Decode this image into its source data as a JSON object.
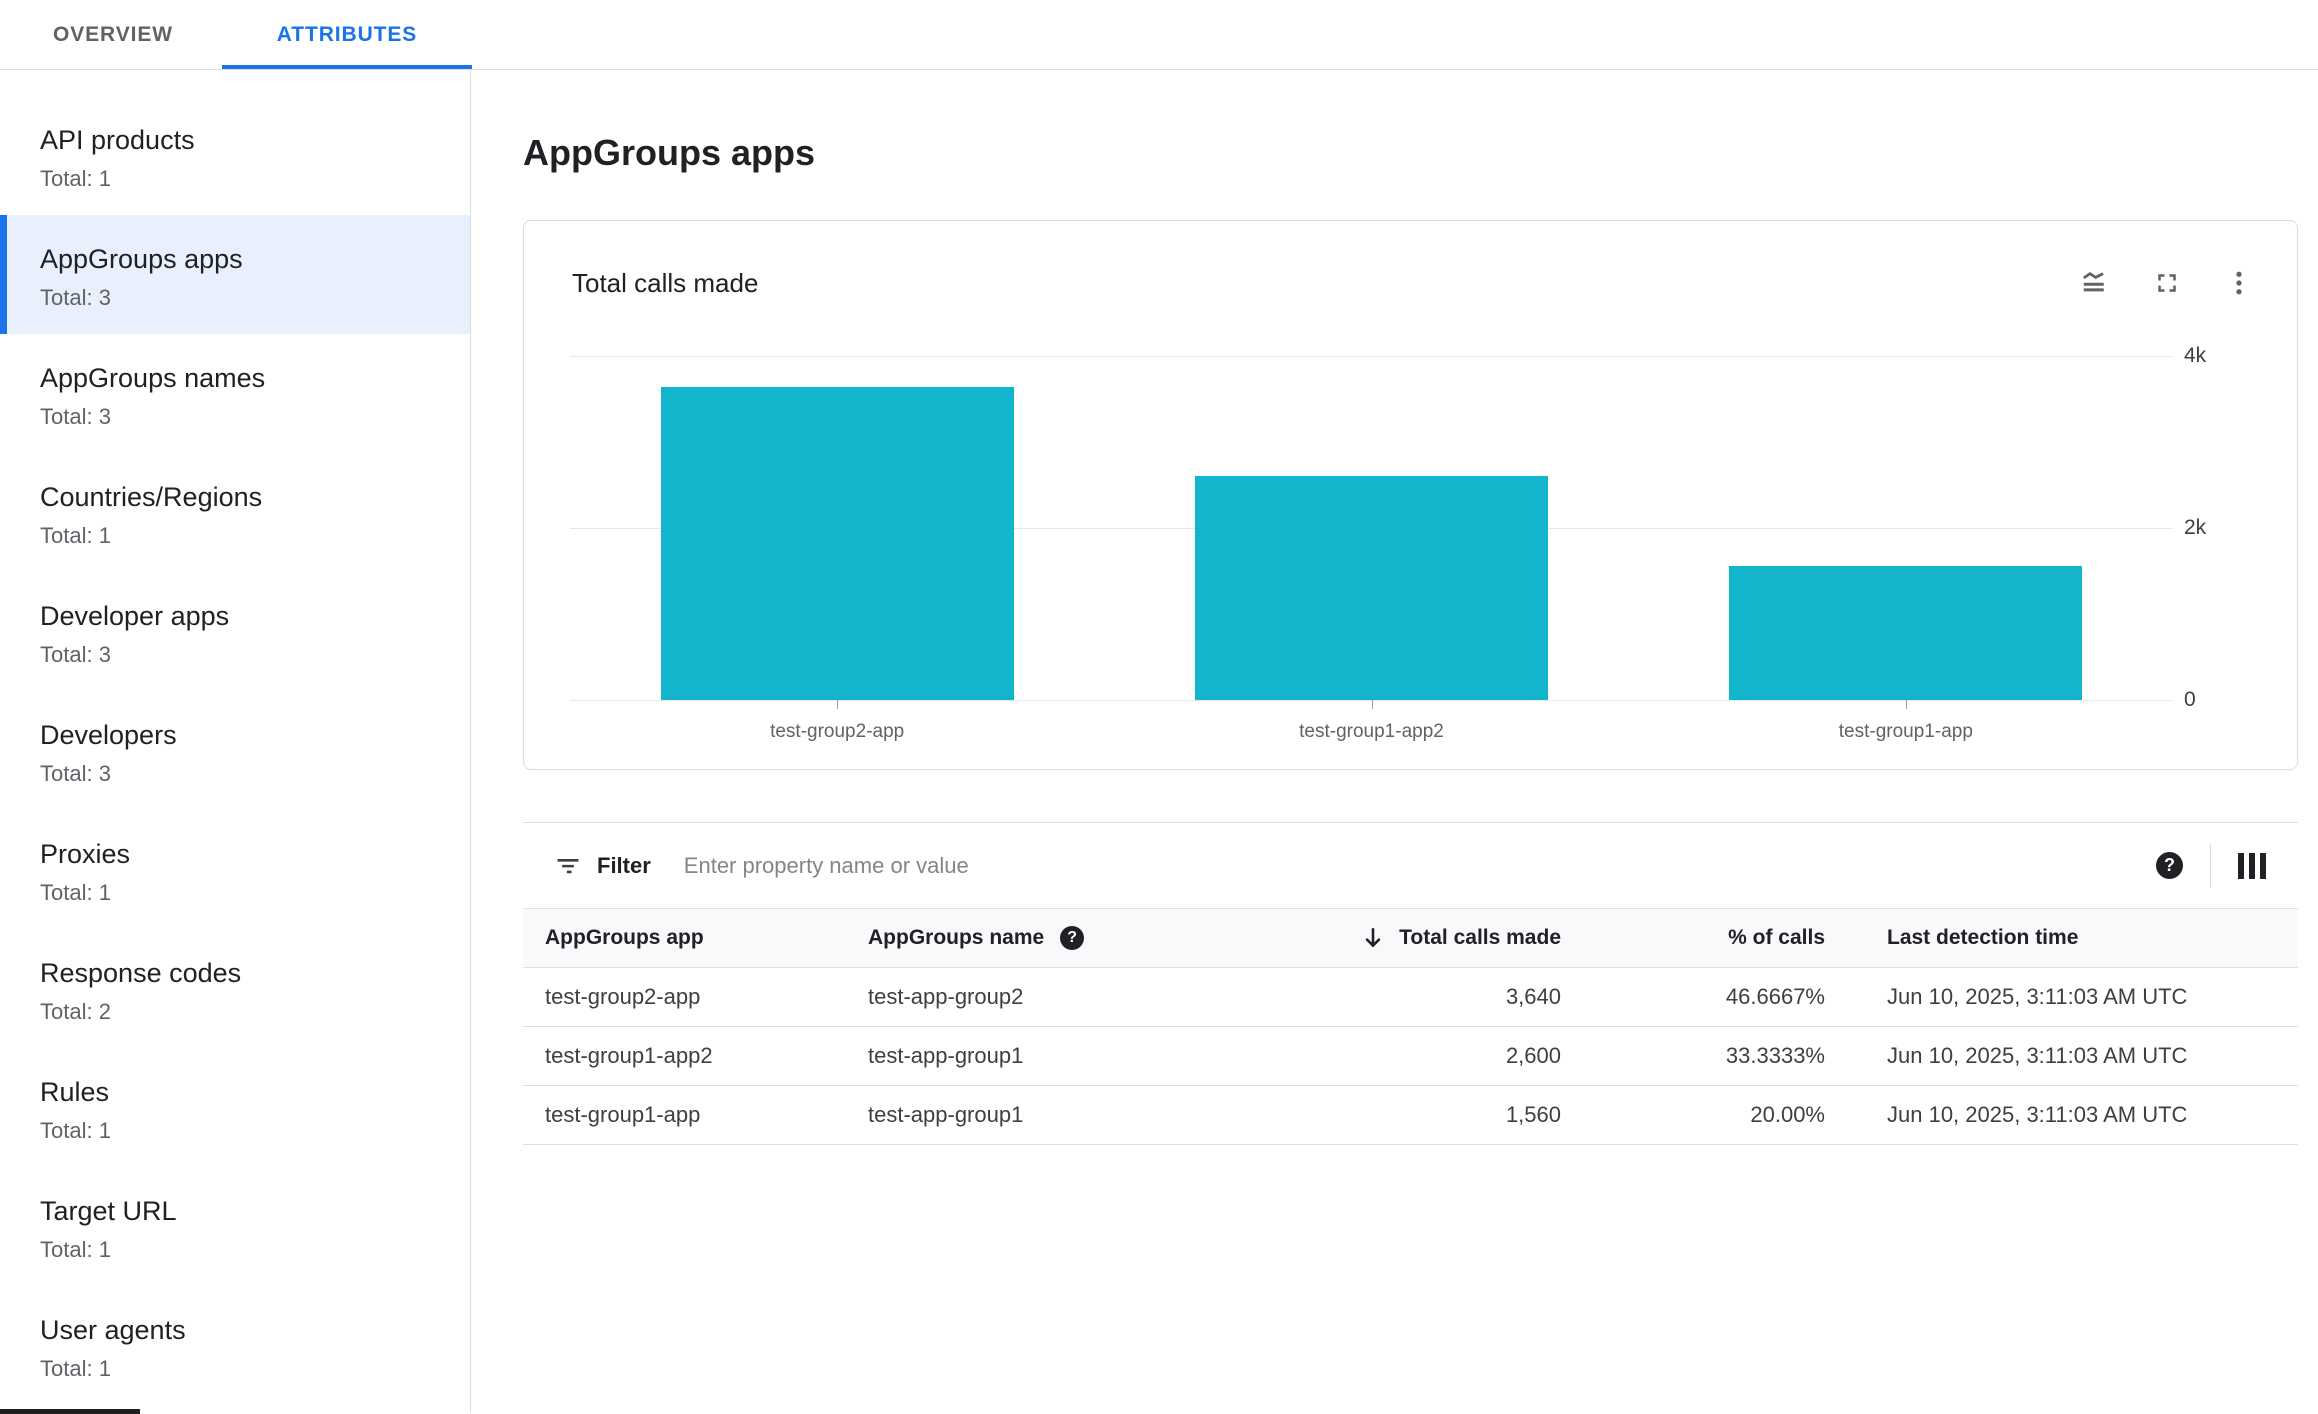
{
  "tabs": {
    "items": [
      {
        "label": "OVERVIEW"
      },
      {
        "label": "ATTRIBUTES"
      }
    ],
    "active_index": 1
  },
  "sidebar": {
    "selected_index": 1,
    "items": [
      {
        "label": "API products",
        "total": "Total: 1"
      },
      {
        "label": "AppGroups apps",
        "total": "Total: 3"
      },
      {
        "label": "AppGroups names",
        "total": "Total: 3"
      },
      {
        "label": "Countries/Regions",
        "total": "Total: 1"
      },
      {
        "label": "Developer apps",
        "total": "Total: 3"
      },
      {
        "label": "Developers",
        "total": "Total: 3"
      },
      {
        "label": "Proxies",
        "total": "Total: 1"
      },
      {
        "label": "Response codes",
        "total": "Total: 2"
      },
      {
        "label": "Rules",
        "total": "Total: 1"
      },
      {
        "label": "Target URL",
        "total": "Total: 1"
      },
      {
        "label": "User agents",
        "total": "Total: 1"
      }
    ]
  },
  "main": {
    "title": "AppGroups apps"
  },
  "chart_card": {
    "title": "Total calls made",
    "icons": [
      "chart-type-icon",
      "fullscreen-icon",
      "more-vert-icon"
    ]
  },
  "filter": {
    "label": "Filter",
    "placeholder": "Enter property name or value"
  },
  "icons": {
    "help_glyph": "?"
  },
  "table": {
    "columns": [
      {
        "label": "AppGroups app"
      },
      {
        "label": "AppGroups name",
        "help_icon": true
      },
      {
        "label": "Total calls made",
        "sort": "desc"
      },
      {
        "label": "% of calls"
      },
      {
        "label": "Last detection time"
      }
    ],
    "rows": [
      {
        "app": "test-group2-app",
        "name": "test-app-group2",
        "calls": "3,640",
        "pct": "46.6667%",
        "time": "Jun 10, 2025, 3:11:03 AM UTC"
      },
      {
        "app": "test-group1-app2",
        "name": "test-app-group1",
        "calls": "2,600",
        "pct": "33.3333%",
        "time": "Jun 10, 2025, 3:11:03 AM UTC"
      },
      {
        "app": "test-group1-app",
        "name": "test-app-group1",
        "calls": "1,560",
        "pct": "20.00%",
        "time": "Jun 10, 2025, 3:11:03 AM UTC"
      }
    ]
  },
  "chart_data": {
    "type": "bar",
    "title": "Total calls made",
    "categories": [
      "test-group2-app",
      "test-group1-app2",
      "test-group1-app"
    ],
    "values": [
      3640,
      2600,
      1560
    ],
    "xlabel": "",
    "ylabel": "",
    "ylim": [
      0,
      4000
    ],
    "yticks": [
      {
        "value": 0,
        "label": "0"
      },
      {
        "value": 2000,
        "label": "2k"
      },
      {
        "value": 4000,
        "label": "4k"
      }
    ],
    "grid": true,
    "legend": false,
    "y_axis_position": "right",
    "bar_color": "#12b5cb"
  },
  "colors": {
    "accent": "#1a73e8",
    "selected_bg": "#e8f0fe",
    "bar": "#12b5cb",
    "text": "#202124",
    "secondary": "#5f6368",
    "border": "#dadce0",
    "header_bg": "#f8f9fa"
  }
}
